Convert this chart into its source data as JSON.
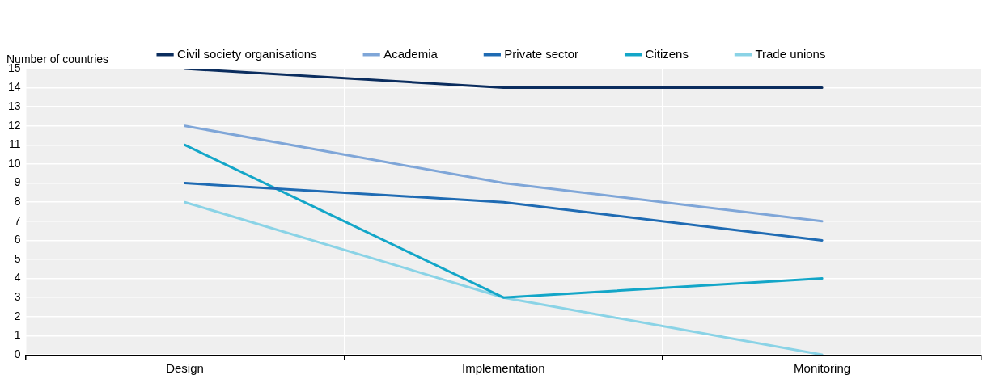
{
  "chart_data": {
    "type": "line",
    "ylabel": "Number of countries",
    "categories": [
      "Design",
      "Implementation",
      "Monitoring"
    ],
    "series": [
      {
        "name": "Civil society organisations",
        "color": "#0b2d5e",
        "values": [
          15,
          14,
          14
        ]
      },
      {
        "name": "Academia",
        "color": "#7fa6d8",
        "values": [
          12,
          9,
          7
        ]
      },
      {
        "name": "Private sector",
        "color": "#1f6bb3",
        "values": [
          9,
          8,
          6
        ]
      },
      {
        "name": "Citizens",
        "color": "#13a6c8",
        "values": [
          11,
          3,
          4
        ]
      },
      {
        "name": "Trade unions",
        "color": "#8ad3e6",
        "values": [
          8,
          3,
          0
        ]
      }
    ],
    "ylim": [
      0,
      15
    ],
    "yticks": [
      0,
      1,
      2,
      3,
      4,
      5,
      6,
      7,
      8,
      9,
      10,
      11,
      12,
      13,
      14,
      15
    ],
    "grid": true,
    "legend": "top",
    "marker": "none",
    "line_style": "solid"
  }
}
